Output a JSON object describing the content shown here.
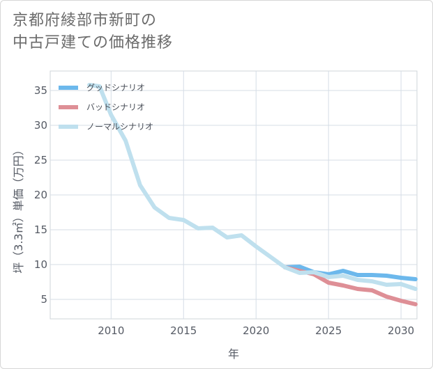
{
  "title": {
    "line1": "京都府綾部市新町の",
    "line2": "中古戸建ての価格推移"
  },
  "chart_data": {
    "type": "line",
    "title": "京都府綾部市新町の中古戸建ての価格推移",
    "xlabel": "年",
    "ylabel": "坪（3.3㎡）単価（万円）",
    "xlim": [
      2005.8,
      2031.1
    ],
    "ylim": [
      2.2,
      37.8
    ],
    "x_ticks": [
      2010,
      2015,
      2020,
      2025,
      2030
    ],
    "y_ticks": [
      5,
      10,
      15,
      20,
      25,
      30,
      35
    ],
    "grid": true,
    "legend_position": "top-left",
    "series": [
      {
        "name": "グッドシナリオ",
        "color": "#6cb8ec",
        "x": [
          2022,
          2023,
          2024,
          2025,
          2026,
          2027,
          2028,
          2029,
          2030,
          2031
        ],
        "y": [
          9.6,
          9.7,
          8.9,
          8.6,
          9.1,
          8.5,
          8.5,
          8.4,
          8.1,
          7.9
        ]
      },
      {
        "name": "バッドシナリオ",
        "color": "#de8f96",
        "x": [
          2022,
          2023,
          2024,
          2025,
          2026,
          2027,
          2028,
          2029,
          2030,
          2031
        ],
        "y": [
          9.6,
          9.1,
          8.6,
          7.4,
          7.0,
          6.5,
          6.3,
          5.4,
          4.8,
          4.3
        ]
      },
      {
        "name": "ノーマルシナリオ",
        "color": "#bfe0ee",
        "x": [
          2008.5,
          2009.2,
          2010,
          2011,
          2012,
          2013,
          2014,
          2015,
          2016,
          2017,
          2018,
          2019,
          2020,
          2021,
          2022,
          2023,
          2024,
          2025,
          2026,
          2027,
          2028,
          2029,
          2030,
          2031
        ],
        "y": [
          35.8,
          35.6,
          31.5,
          27.8,
          21.4,
          18.2,
          16.7,
          16.4,
          15.2,
          15.3,
          13.9,
          14.2,
          12.6,
          11.1,
          9.6,
          8.8,
          8.9,
          8.2,
          8.4,
          7.8,
          7.6,
          7.1,
          7.2,
          6.5
        ]
      }
    ]
  }
}
